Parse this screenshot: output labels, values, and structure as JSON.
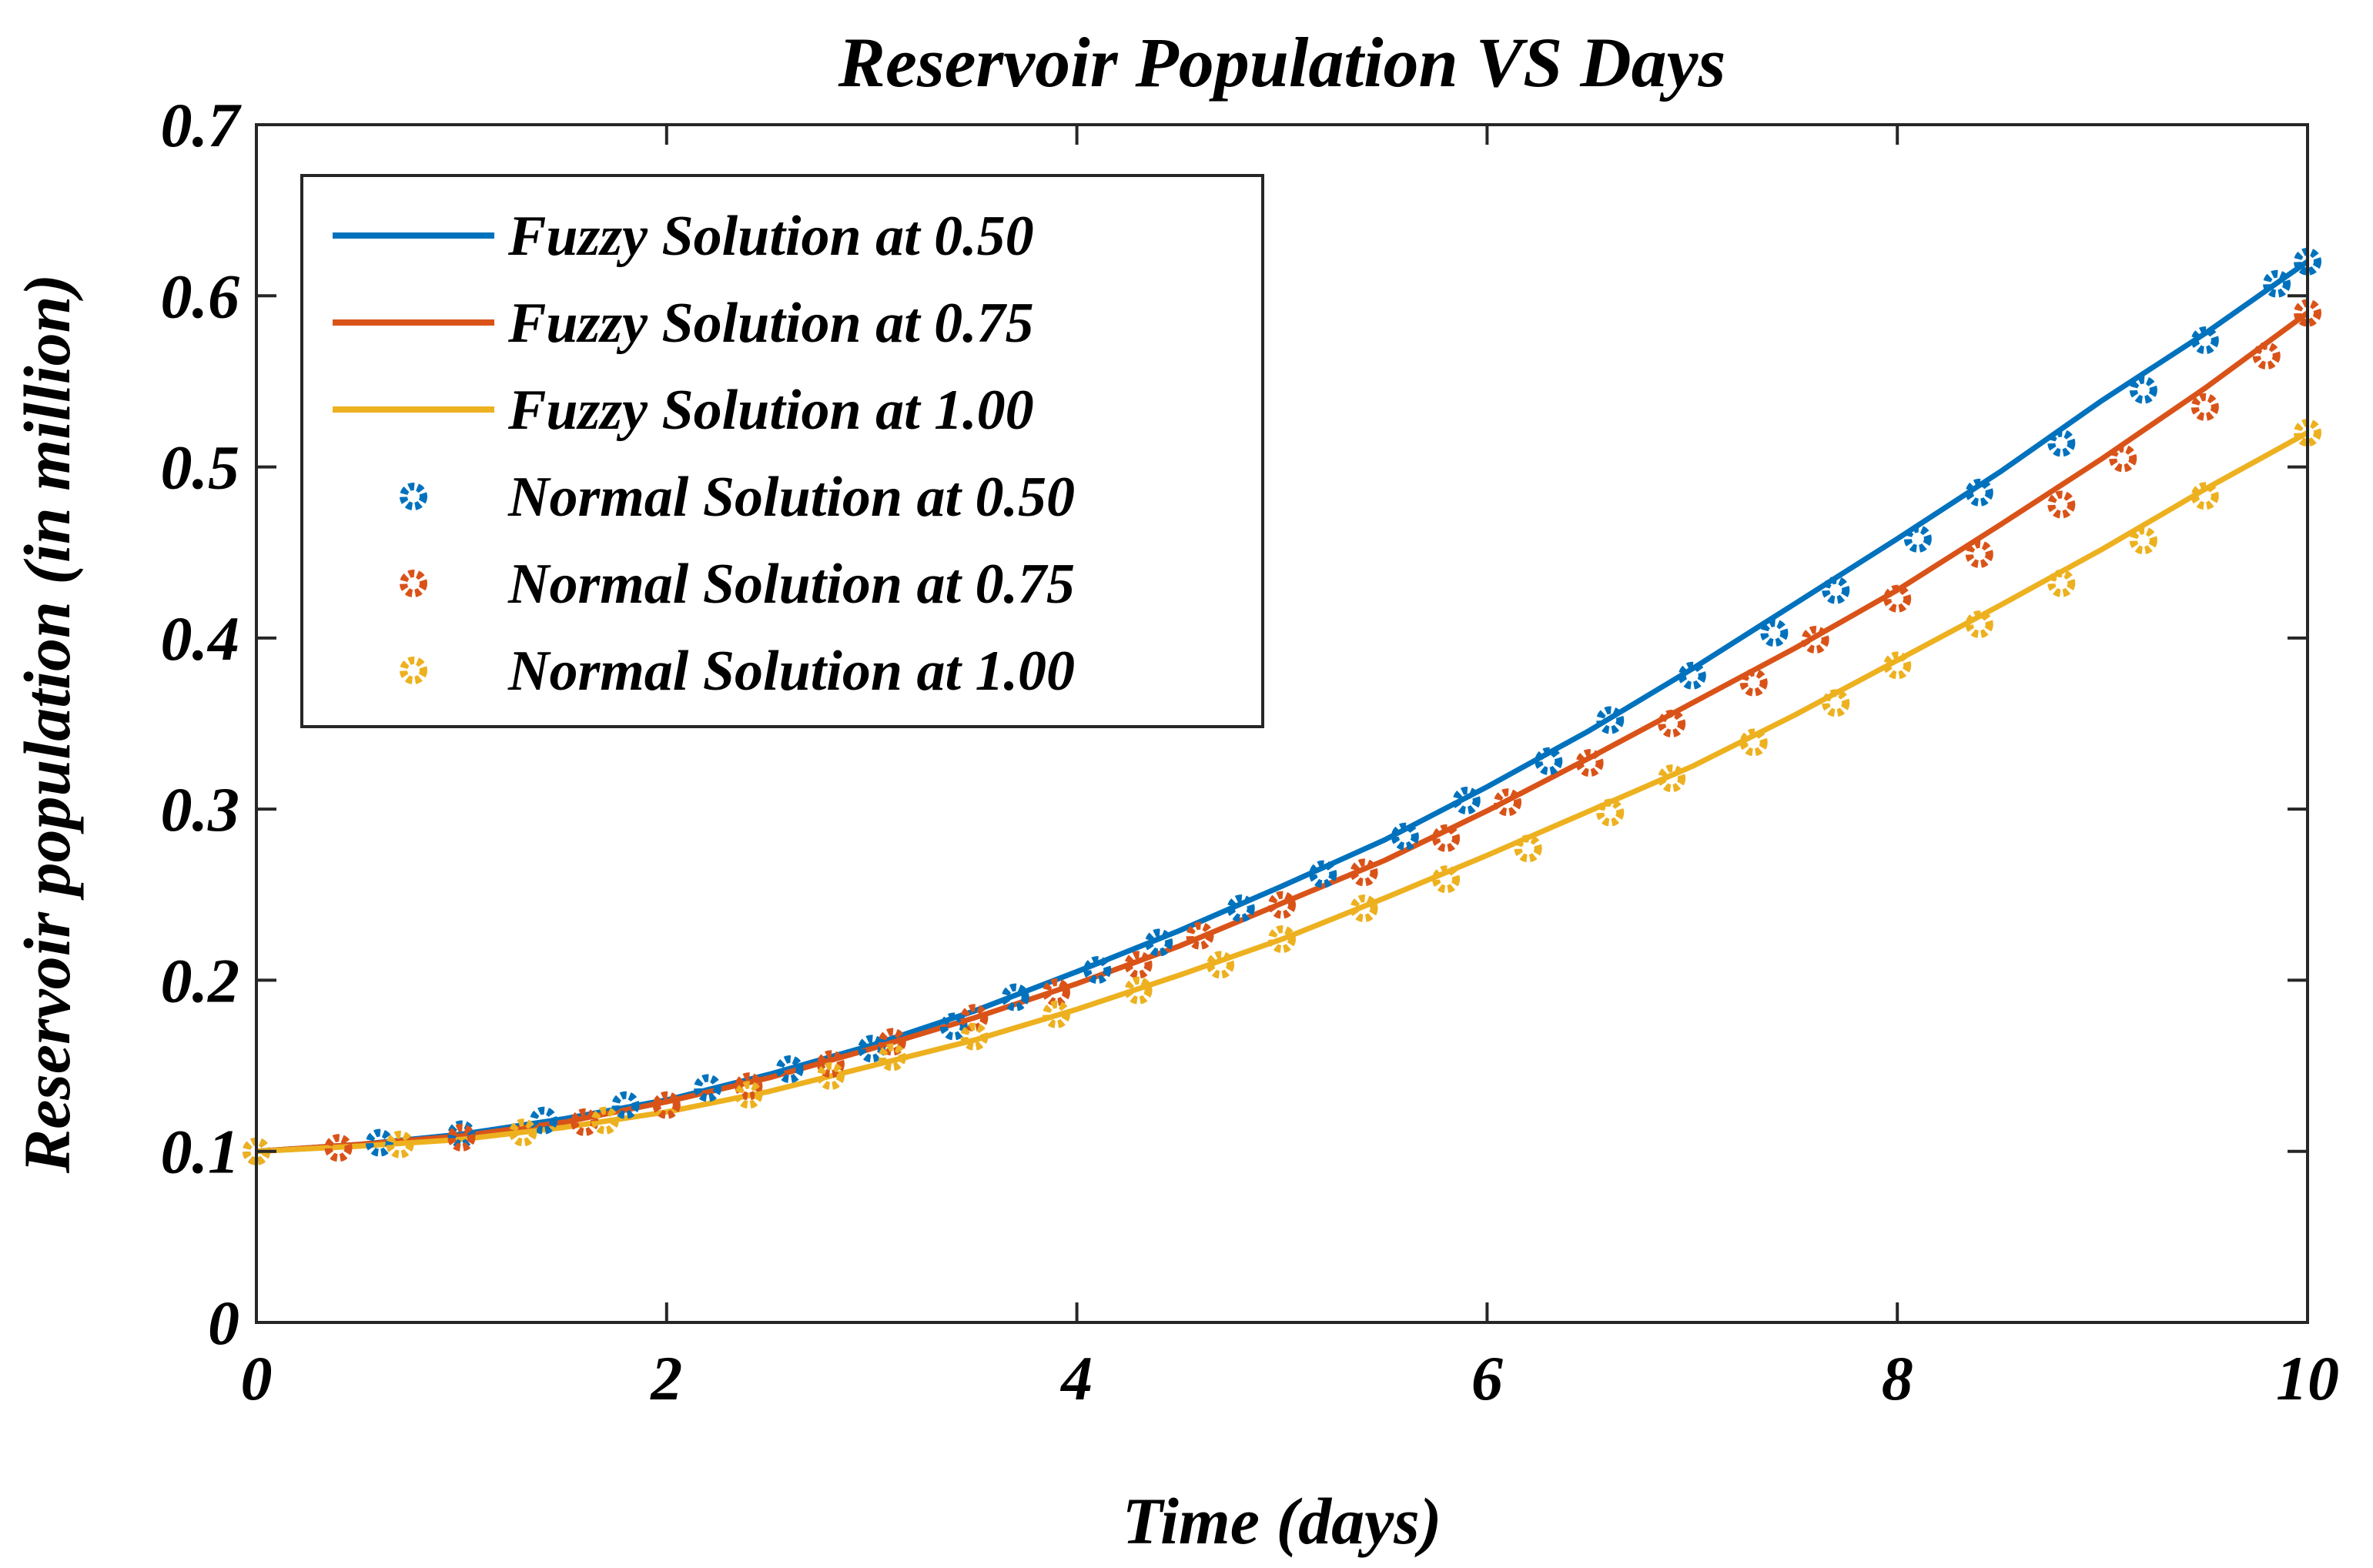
{
  "chart_data": {
    "type": "line",
    "title": "Reservoir Population VS Days",
    "xlabel": "Time (days)",
    "ylabel": "Reservoir population (in million)",
    "xlim": [
      0,
      10
    ],
    "ylim": [
      0,
      0.7
    ],
    "xticks": [
      "0",
      "2",
      "4",
      "6",
      "8",
      "10"
    ],
    "yticks": [
      "0",
      "0.1",
      "0.2",
      "0.3",
      "0.4",
      "0.5",
      "0.6",
      "0.7"
    ],
    "grid": false,
    "legend_position": "top-left",
    "series": [
      {
        "name": "Fuzzy Solution at 0.50",
        "style": "line",
        "color": "#0072BD",
        "x": [
          0,
          0.5,
          1,
          1.5,
          2,
          2.5,
          3,
          3.5,
          4,
          4.5,
          5,
          5.5,
          6,
          6.5,
          7,
          7.5,
          8,
          8.5,
          9,
          9.5,
          10
        ],
        "y": [
          0.1,
          0.104,
          0.11,
          0.119,
          0.13,
          0.145,
          0.162,
          0.182,
          0.205,
          0.229,
          0.255,
          0.282,
          0.313,
          0.346,
          0.382,
          0.42,
          0.458,
          0.497,
          0.539,
          0.578,
          0.62
        ]
      },
      {
        "name": "Fuzzy Solution at 0.75",
        "style": "line",
        "color": "#D95319",
        "x": [
          0,
          0.5,
          1,
          1.5,
          2,
          2.5,
          3,
          3.5,
          4,
          4.5,
          5,
          5.5,
          6,
          6.5,
          7,
          7.5,
          8,
          8.5,
          9,
          9.5,
          10
        ],
        "y": [
          0.1,
          0.104,
          0.109,
          0.117,
          0.129,
          0.143,
          0.16,
          0.178,
          0.198,
          0.22,
          0.245,
          0.27,
          0.299,
          0.33,
          0.362,
          0.394,
          0.428,
          0.466,
          0.505,
          0.546,
          0.59
        ]
      },
      {
        "name": "Fuzzy Solution at 1.00",
        "style": "line",
        "color": "#EDB120",
        "x": [
          0,
          0.5,
          1,
          1.5,
          2,
          2.5,
          3,
          3.5,
          4,
          4.5,
          5,
          5.5,
          6,
          6.5,
          7,
          7.5,
          8,
          8.5,
          9,
          9.5,
          10
        ],
        "y": [
          0.1,
          0.103,
          0.107,
          0.114,
          0.123,
          0.135,
          0.15,
          0.165,
          0.183,
          0.203,
          0.224,
          0.248,
          0.273,
          0.299,
          0.325,
          0.355,
          0.387,
          0.419,
          0.452,
          0.487,
          0.52
        ]
      },
      {
        "name": "Normal Solution at 0.50",
        "style": "markers",
        "color": "#0072BD",
        "x": [
          0,
          0.6,
          1.0,
          1.4,
          1.8,
          2.2,
          2.6,
          3.0,
          3.4,
          3.7,
          4.1,
          4.4,
          4.8,
          5.2,
          5.6,
          5.9,
          6.3,
          6.6,
          7.0,
          7.4,
          7.7,
          8.1,
          8.4,
          8.8,
          9.2,
          9.5,
          9.85,
          10
        ],
        "y": [
          0.1,
          0.105,
          0.11,
          0.118,
          0.127,
          0.137,
          0.148,
          0.16,
          0.173,
          0.19,
          0.206,
          0.222,
          0.242,
          0.262,
          0.284,
          0.305,
          0.328,
          0.352,
          0.378,
          0.403,
          0.428,
          0.458,
          0.485,
          0.514,
          0.545,
          0.574,
          0.607,
          0.62
        ]
      },
      {
        "name": "Normal Solution at 0.75",
        "style": "markers",
        "color": "#D95319",
        "x": [
          0,
          0.4,
          1.0,
          1.6,
          2.0,
          2.4,
          2.8,
          3.1,
          3.5,
          3.9,
          4.3,
          4.6,
          5.0,
          5.4,
          5.8,
          6.1,
          6.5,
          6.9,
          7.3,
          7.6,
          8.0,
          8.4,
          8.8,
          9.1,
          9.5,
          9.8,
          10
        ],
        "y": [
          0.1,
          0.102,
          0.108,
          0.117,
          0.127,
          0.138,
          0.151,
          0.164,
          0.178,
          0.193,
          0.209,
          0.226,
          0.244,
          0.263,
          0.283,
          0.304,
          0.327,
          0.35,
          0.374,
          0.399,
          0.423,
          0.449,
          0.478,
          0.505,
          0.535,
          0.565,
          0.59
        ]
      },
      {
        "name": "Normal Solution at 1.00",
        "style": "markers",
        "color": "#EDB120",
        "x": [
          0,
          0.7,
          1.3,
          1.7,
          2.4,
          2.8,
          3.1,
          3.5,
          3.9,
          4.3,
          4.7,
          5.0,
          5.4,
          5.8,
          6.2,
          6.6,
          6.9,
          7.3,
          7.7,
          8.0,
          8.4,
          8.8,
          9.2,
          9.5,
          10
        ],
        "y": [
          0.1,
          0.104,
          0.111,
          0.118,
          0.133,
          0.144,
          0.155,
          0.167,
          0.18,
          0.194,
          0.209,
          0.224,
          0.242,
          0.259,
          0.277,
          0.298,
          0.318,
          0.339,
          0.362,
          0.384,
          0.408,
          0.432,
          0.457,
          0.483,
          0.52
        ]
      }
    ]
  }
}
